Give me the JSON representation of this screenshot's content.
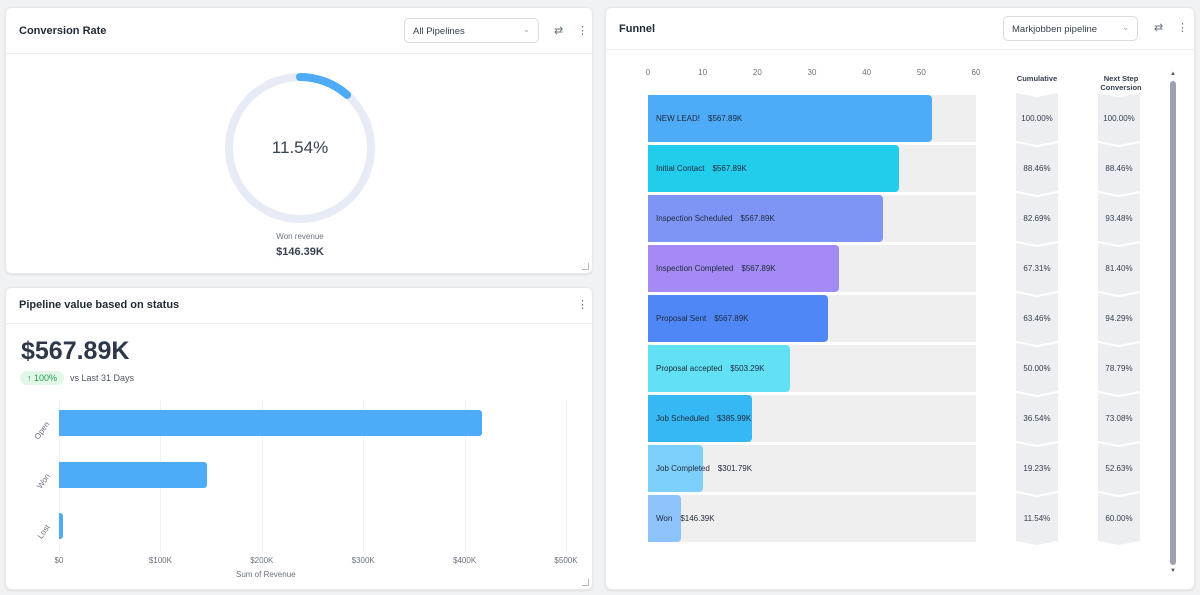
{
  "conversion": {
    "title": "Conversion Rate",
    "select": "All Pipelines",
    "rate_label": "11.54%",
    "rate": 0.1154,
    "sub_label": "Won revenue",
    "sub_value": "$146.39K"
  },
  "pipeline": {
    "title": "Pipeline value based on status",
    "total": "$567.89K",
    "change": "↑ 100%",
    "change_text": "vs Last 31 Days",
    "chart_data": {
      "type": "bar",
      "orientation": "horizontal",
      "categories": [
        "Open",
        "Won",
        "Lost"
      ],
      "values": [
        417000,
        146390,
        4000
      ],
      "xlabel": "Sum of Revenue",
      "xlim": [
        0,
        500000
      ],
      "xticks": [
        "$0",
        "$100K",
        "$200K",
        "$300K",
        "$400K",
        "$500K"
      ],
      "color": "#4dabf7"
    }
  },
  "funnel": {
    "title": "Funnel",
    "select": "Markjobben pipeline",
    "col_cumulative": "Cumulative",
    "col_next": "Next Step Conversion",
    "chart_data": {
      "type": "bar",
      "orientation": "horizontal",
      "xlim": [
        0,
        60
      ],
      "xticks": [
        "0",
        "10",
        "20",
        "30",
        "40",
        "50",
        "60"
      ],
      "stages": [
        {
          "name": "NEW LEAD!",
          "value_label": "$567.89K",
          "count": 52,
          "cumulative": "100.00%",
          "next": "100.00%",
          "color": "#4dabf7"
        },
        {
          "name": "Initial Contact",
          "value_label": "$567.89K",
          "count": 46,
          "cumulative": "88.46%",
          "next": "88.46%",
          "color": "#22cceb"
        },
        {
          "name": "Inspection Scheduled",
          "value_label": "$567.89K",
          "count": 43,
          "cumulative": "82.69%",
          "next": "93.48%",
          "color": "#7f95f5"
        },
        {
          "name": "Inspection Completed",
          "value_label": "$567.89K",
          "count": 35,
          "cumulative": "67.31%",
          "next": "81.40%",
          "color": "#a48af5"
        },
        {
          "name": "Proposal Sent",
          "value_label": "$567.89K",
          "count": 33,
          "cumulative": "63.46%",
          "next": "94.29%",
          "color": "#4f88f6"
        },
        {
          "name": "Proposal accepted",
          "value_label": "$503.29K",
          "count": 26,
          "cumulative": "50.00%",
          "next": "78.79%",
          "color": "#62e1f5"
        },
        {
          "name": "Job Scheduled",
          "value_label": "$385.99K",
          "count": 19,
          "cumulative": "36.54%",
          "next": "73.08%",
          "color": "#36b8f5"
        },
        {
          "name": "Job Completed",
          "value_label": "$301.79K",
          "count": 10,
          "cumulative": "19.23%",
          "next": "52.63%",
          "color": "#7dd0fb"
        },
        {
          "name": "Won",
          "value_label": "$146.39K",
          "count": 6,
          "cumulative": "11.54%",
          "next": "60.00%",
          "color": "#8cc3fb"
        }
      ]
    }
  }
}
